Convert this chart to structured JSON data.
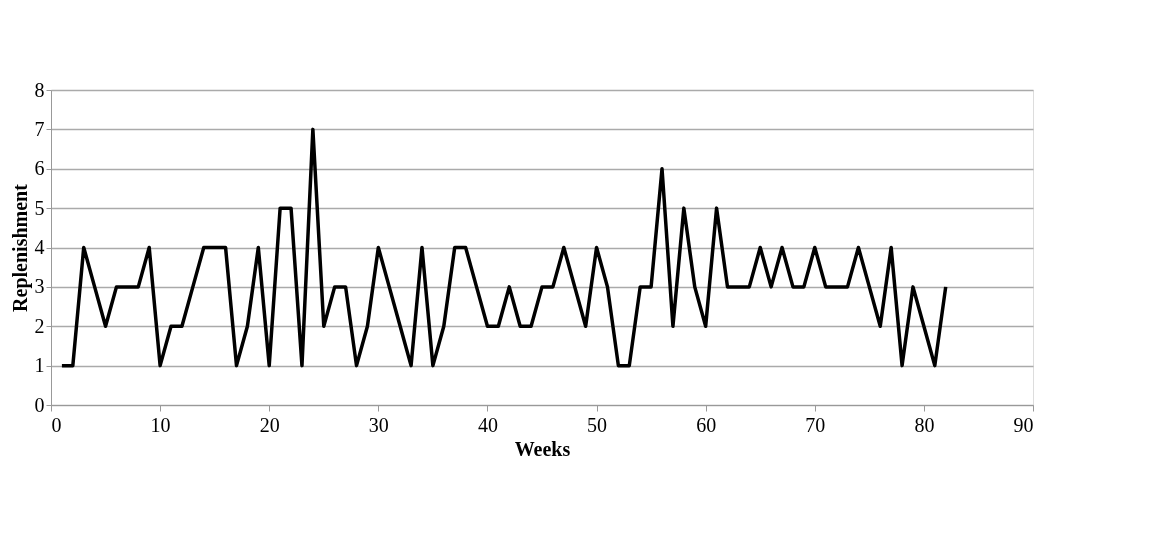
{
  "chart_data": {
    "type": "line",
    "xlabel": "Weeks",
    "ylabel": "Replenishment",
    "x": [
      1,
      2,
      3,
      4,
      5,
      6,
      7,
      8,
      9,
      10,
      11,
      12,
      13,
      14,
      15,
      16,
      17,
      18,
      19,
      20,
      21,
      22,
      23,
      24,
      25,
      26,
      27,
      28,
      29,
      30,
      31,
      32,
      33,
      34,
      35,
      36,
      37,
      38,
      39,
      40,
      41,
      42,
      43,
      44,
      45,
      46,
      47,
      48,
      49,
      50,
      51,
      52,
      53,
      54,
      55,
      56,
      57,
      58,
      59,
      60,
      61,
      62,
      63,
      64,
      65,
      66,
      67,
      68,
      69,
      70,
      71,
      72,
      73,
      74,
      75,
      76,
      77,
      78,
      79,
      80,
      81,
      82
    ],
    "series": [
      {
        "color": "#000000",
        "values": [
          1,
          1,
          4,
          3,
          2,
          3,
          3,
          3,
          4,
          1,
          2,
          2,
          3,
          4,
          4,
          4,
          1,
          2,
          4,
          1,
          5,
          5,
          1,
          7,
          2,
          3,
          3,
          1,
          2,
          4,
          3,
          2,
          1,
          4,
          1,
          2,
          4,
          4,
          3,
          2,
          2,
          3,
          2,
          2,
          3,
          3,
          4,
          3,
          2,
          4,
          3,
          1,
          1,
          3,
          3,
          6,
          2,
          5,
          3,
          2,
          5,
          3,
          3,
          3,
          4,
          3,
          4,
          3,
          3,
          4,
          3,
          3,
          3,
          4,
          3,
          2,
          4,
          1,
          3,
          2,
          1,
          3
        ]
      }
    ],
    "xlim": [
      0,
      90
    ],
    "xticks": [
      0,
      10,
      20,
      30,
      40,
      50,
      60,
      70,
      80,
      90
    ],
    "ylim": [
      0,
      8
    ],
    "yticks": [
      0,
      1,
      2,
      3,
      4,
      5,
      6,
      7,
      8
    ],
    "grid": "y",
    "legend": false,
    "marker": "none",
    "line_style": "solid"
  }
}
